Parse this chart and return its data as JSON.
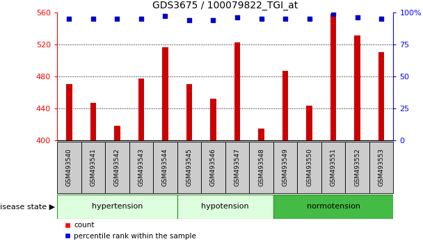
{
  "title": "GDS3675 / 100079822_TGI_at",
  "samples": [
    "GSM493540",
    "GSM493541",
    "GSM493542",
    "GSM493543",
    "GSM493544",
    "GSM493545",
    "GSM493546",
    "GSM493547",
    "GSM493548",
    "GSM493549",
    "GSM493550",
    "GSM493551",
    "GSM493552",
    "GSM493553"
  ],
  "counts": [
    470,
    447,
    418,
    477,
    516,
    470,
    452,
    522,
    415,
    487,
    443,
    558,
    531,
    510
  ],
  "percentiles": [
    95,
    95,
    95,
    95,
    97,
    94,
    94,
    96,
    95,
    95,
    95,
    99,
    96,
    95
  ],
  "groups": [
    {
      "label": "hypertension",
      "start": 0,
      "end": 5,
      "color": "#ddffdd"
    },
    {
      "label": "hypotension",
      "start": 5,
      "end": 9,
      "color": "#ddffdd"
    },
    {
      "label": "normotension",
      "start": 9,
      "end": 14,
      "color": "#44cc44"
    }
  ],
  "ylim": [
    400,
    560
  ],
  "yticks": [
    400,
    440,
    480,
    520,
    560
  ],
  "right_yticks": [
    0,
    25,
    50,
    75,
    100
  ],
  "bar_color": "#cc0000",
  "dot_color": "#0000cc",
  "background_color": "#ffffff",
  "bar_width": 0.25,
  "xtick_bg_color": "#cccccc",
  "hyp_color": "#ddffdd",
  "norm_color": "#44bb44",
  "group_border_color": "#338833"
}
